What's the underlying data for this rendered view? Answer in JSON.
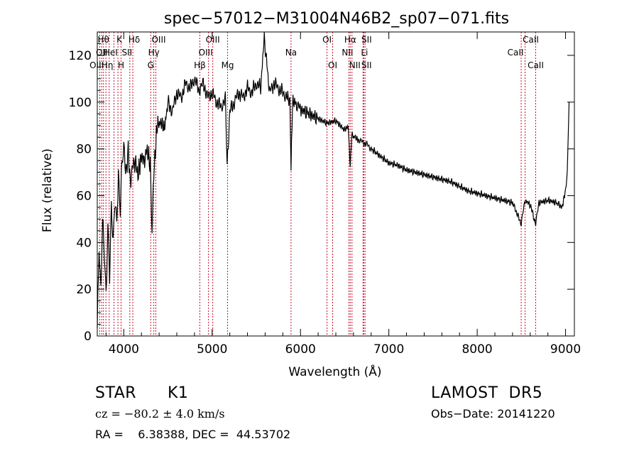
{
  "chart_data": {
    "type": "line",
    "title": "spec−57012−M31004N46B2_sp07−071.fits",
    "xlabel": "Wavelength (Å)",
    "ylabel": "Flux (relative)",
    "xlim": [
      3700,
      9100
    ],
    "ylim": [
      0,
      130
    ],
    "xticks": [
      4000,
      5000,
      6000,
      7000,
      8000,
      9000
    ],
    "yticks": [
      0,
      20,
      40,
      60,
      80,
      100,
      120
    ],
    "series": [
      {
        "x": [
          3700,
          3720,
          3740,
          3760,
          3780,
          3800,
          3820,
          3840,
          3860,
          3880,
          3900,
          3920,
          3940,
          3960,
          3980,
          4000,
          4020,
          4050,
          4080,
          4100,
          4130,
          4160,
          4200,
          4230,
          4260,
          4300,
          4320,
          4340,
          4380,
          4420,
          4460,
          4500,
          4550,
          4600,
          4650,
          4700,
          4750,
          4800,
          4850,
          4900,
          4950,
          5000,
          5050,
          5100,
          5150,
          5170,
          5200,
          5250,
          5300,
          5350,
          5400,
          5450,
          5500,
          5550,
          5590,
          5650,
          5700,
          5750,
          5800,
          5850,
          5880,
          5893,
          5910,
          5950,
          6000,
          6100,
          6200,
          6300,
          6400,
          6500,
          6540,
          6563,
          6580,
          6650,
          6700,
          6750,
          6800,
          6900,
          7000,
          7100,
          7200,
          7300,
          7400,
          7500,
          7600,
          7700,
          7800,
          7900,
          8000,
          8100,
          8200,
          8300,
          8400,
          8498,
          8542,
          8600,
          8662,
          8700,
          8800,
          8900,
          8960,
          9000,
          9020,
          9040
        ],
        "y": [
          5,
          40,
          20,
          50,
          35,
          15,
          45,
          25,
          55,
          40,
          60,
          50,
          70,
          55,
          75,
          80,
          70,
          78,
          65,
          72,
          75,
          68,
          78,
          74,
          80,
          72,
          45,
          70,
          90,
          92,
          88,
          100,
          96,
          104,
          102,
          108,
          106,
          110,
          105,
          108,
          102,
          104,
          100,
          98,
          101,
          72,
          96,
          100,
          104,
          102,
          106,
          104,
          108,
          106,
          128,
          104,
          108,
          106,
          104,
          102,
          101,
          72,
          100,
          99,
          97,
          95,
          93,
          91,
          92,
          88,
          90,
          72,
          86,
          84,
          83,
          82,
          80,
          77,
          74,
          73,
          71,
          70,
          69,
          68,
          67,
          66,
          64,
          62,
          61,
          60,
          59,
          58,
          57,
          48,
          58,
          56,
          48,
          57,
          58,
          57,
          55,
          62,
          70,
          100
        ]
      }
    ],
    "lines": [
      {
        "w": 3727,
        "label": "OII",
        "row": 2,
        "dx": -6
      },
      {
        "w": 3750,
        "label": "OII",
        "row": 1,
        "dx": 0
      },
      {
        "w": 3770,
        "label": "Hθ",
        "row": 0,
        "dx": 0
      },
      {
        "w": 3798,
        "label": "Hη",
        "row": 2,
        "dx": 2
      },
      {
        "w": 3835,
        "label": "HeI",
        "row": 1,
        "dx": 2
      },
      {
        "w": 3889,
        "label": "",
        "row": 0,
        "dx": 0
      },
      {
        "w": 3934,
        "label": "K",
        "row": 0,
        "dx": 2
      },
      {
        "w": 3969,
        "label": "H",
        "row": 2,
        "dx": 0
      },
      {
        "w": 4068,
        "label": "SII",
        "row": 1,
        "dx": -4
      },
      {
        "w": 4102,
        "label": "Hδ",
        "row": 0,
        "dx": 2
      },
      {
        "w": 4305,
        "label": "G",
        "row": 2,
        "dx": 0
      },
      {
        "w": 4340,
        "label": "Hγ",
        "row": 1,
        "dx": 0
      },
      {
        "w": 4363,
        "label": "OIII",
        "row": 0,
        "dx": 4
      },
      {
        "w": 4861,
        "label": "Hβ",
        "row": 2,
        "dx": 0
      },
      {
        "w": 4959,
        "label": "OIII",
        "row": 1,
        "dx": -4
      },
      {
        "w": 5007,
        "label": "OIII",
        "row": 0,
        "dx": 0
      },
      {
        "w": 5175,
        "label": "Mg",
        "row": 2,
        "dx": 0
      },
      {
        "w": 5893,
        "label": "Na",
        "row": 1,
        "dx": 0
      },
      {
        "w": 6300,
        "label": "OI",
        "row": 0,
        "dx": 0
      },
      {
        "w": 6364,
        "label": "OI",
        "row": 2,
        "dx": 0
      },
      {
        "w": 6548,
        "label": "NII",
        "row": 1,
        "dx": -2
      },
      {
        "w": 6563,
        "label": "Hα",
        "row": 0,
        "dx": 0
      },
      {
        "w": 6583,
        "label": "NII",
        "row": 2,
        "dx": 4
      },
      {
        "w": 6708,
        "label": "Li",
        "row": 1,
        "dx": 2
      },
      {
        "w": 6716,
        "label": "SII",
        "row": 0,
        "dx": 4
      },
      {
        "w": 6731,
        "label": "SII",
        "row": 2,
        "dx": 2
      },
      {
        "w": 8498,
        "label": "CaII",
        "row": 1,
        "dx": -8
      },
      {
        "w": 8542,
        "label": "CaII",
        "row": 0,
        "dx": 8
      },
      {
        "w": 8662,
        "label": "CaII",
        "row": 2,
        "dx": 0
      }
    ]
  },
  "info": {
    "class_label": "STAR",
    "subclass": "K1",
    "cz_text": "cz = −80.2 ± 4.0 km/s",
    "coords_text": "RA =    6.38388, DEC =  44.53702",
    "survey": "LAMOST  DR5",
    "obs_date": "Obs−Date: 20141220"
  },
  "colors": {
    "line_marker": "#c8102e",
    "spectrum": "#000000"
  }
}
